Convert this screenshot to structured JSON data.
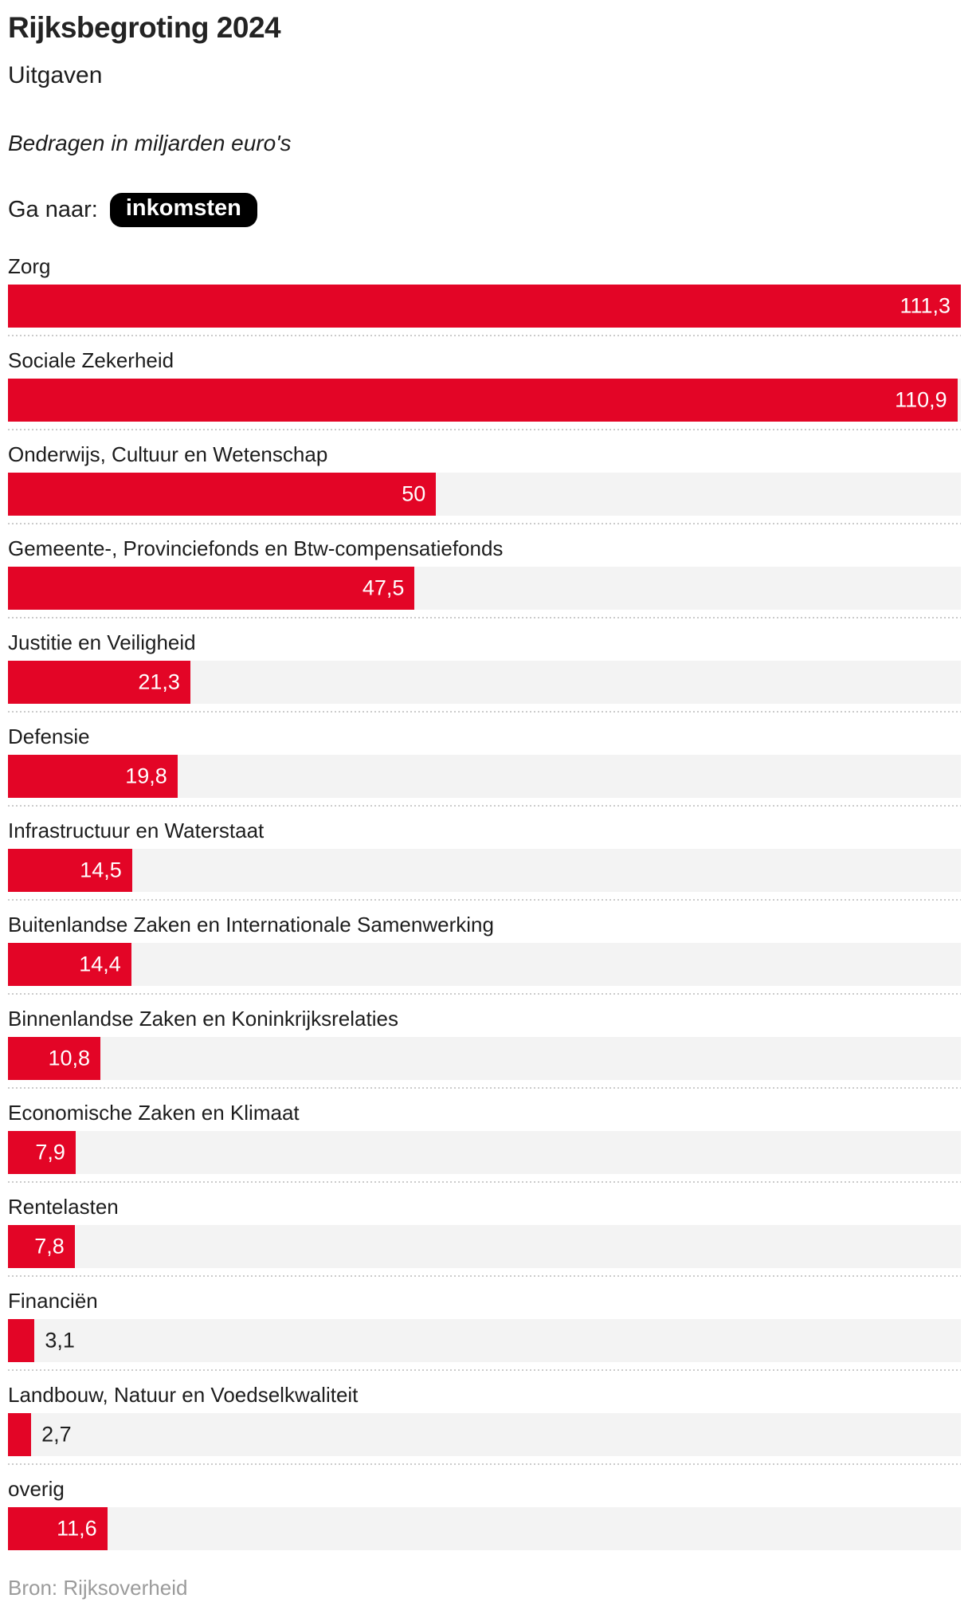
{
  "header": {
    "title": "Rijksbegroting 2024",
    "subtitle": "Uitgaven",
    "unit_note": "Bedragen in miljarden euro's",
    "go_to_label": "Ga naar:",
    "go_to_button_label": "inkomsten"
  },
  "chart_data": {
    "type": "bar",
    "orientation": "horizontal",
    "title": "Rijksbegroting 2024",
    "subtitle": "Uitgaven",
    "unit": "miljarden euro's",
    "xlim": [
      0,
      111.3
    ],
    "grid": false,
    "legend": "none",
    "categories": [
      "Zorg",
      "Sociale Zekerheid",
      "Onderwijs, Cultuur en Wetenschap",
      "Gemeente-, Provinciefonds en Btw-compensatiefonds",
      "Justitie en Veiligheid",
      "Defensie",
      "Infrastructuur en Waterstaat",
      "Buitenlandse Zaken en Internationale Samenwerking",
      "Binnenlandse Zaken en Koninkrijksrelaties",
      "Economische Zaken en Klimaat",
      "Rentelasten",
      "Financiën",
      "Landbouw, Natuur en Voedselkwaliteit",
      "overig"
    ],
    "values": [
      111.3,
      110.9,
      50,
      47.5,
      21.3,
      19.8,
      14.5,
      14.4,
      10.8,
      7.9,
      7.8,
      3.1,
      2.7,
      11.6
    ],
    "value_labels": [
      "111,3",
      "110,9",
      "50",
      "47,5",
      "21,3",
      "19,8",
      "14,5",
      "14,4",
      "10,8",
      "7,9",
      "7,8",
      "3,1",
      "2,7",
      "11,6"
    ]
  },
  "footer": {
    "source": "Bron: Rijksoverheid"
  },
  "colors": {
    "bar": "#e30526",
    "track": "#f3f3f3",
    "text": "#1d1d1d",
    "separator": "#cbcbcb",
    "source_text": "#9b9b9b",
    "pill_bg": "#000000",
    "pill_text": "#ffffff",
    "value_inside": "#ffffff"
  }
}
